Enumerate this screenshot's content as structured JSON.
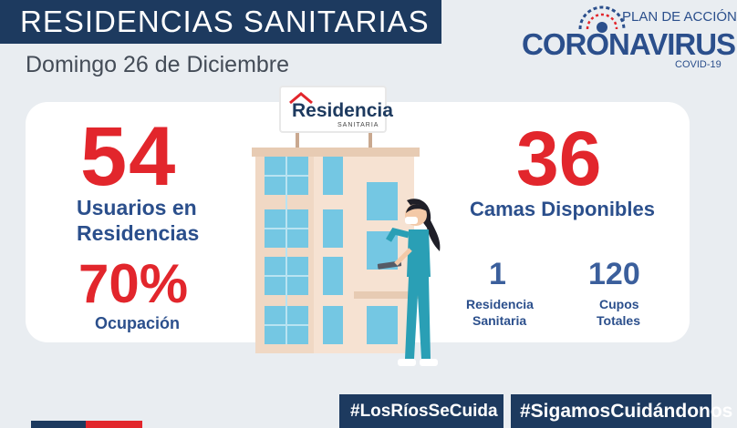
{
  "header": {
    "title": "RESIDENCIAS SANITARIAS",
    "date": "Domingo 26 de Diciembre"
  },
  "logo": {
    "plan": "PLAN DE ACCIÓN",
    "brand": "CORONAVIRUS",
    "sub": "COVID-19"
  },
  "stats": {
    "users_value": "54",
    "users_label_line1": "Usuarios en",
    "users_label_line2": "Residencias",
    "occupancy_value": "70%",
    "occupancy_label": "Ocupación",
    "beds_value": "36",
    "beds_label": "Camas Disponibles",
    "residences_value": "1",
    "residences_label_line1": "Residencia",
    "residences_label_line2": "Sanitaria",
    "slots_value": "120",
    "slots_label_line1": "Cupos",
    "slots_label_line2": "Totales"
  },
  "sign": {
    "name": "Residencia",
    "sub": "SANITARIA"
  },
  "footer": {
    "hashtag1": "#LosRíosSeCuida",
    "hashtag2": "#SigamosCuidándonos"
  },
  "colors": {
    "navy": "#1d3a5f",
    "red": "#e2262c",
    "blue": "#2b4f8c",
    "background": "#e9edf1"
  }
}
